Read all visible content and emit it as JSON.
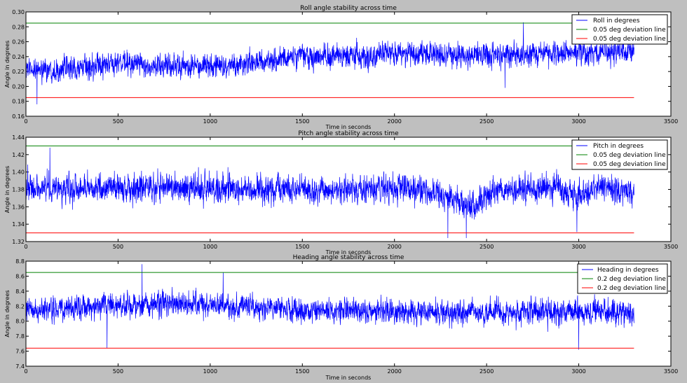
{
  "figure": {
    "background": "#bfbfbf",
    "axes_background": "#ffffff"
  },
  "chart_data": [
    {
      "type": "line",
      "title": "Roll angle stability across time",
      "xlabel": "Time in seconds",
      "ylabel": "Angle in degrees",
      "xlim": [
        0,
        3500
      ],
      "ylim": [
        0.16,
        0.3
      ],
      "xticks": [
        0,
        500,
        1000,
        1500,
        2000,
        2500,
        3000,
        3500
      ],
      "yticks": [
        "0.16",
        "0.18",
        "0.20",
        "0.22",
        "0.24",
        "0.26",
        "0.28",
        "0.30"
      ],
      "legend_position": "top-right",
      "x_end": 3300,
      "series": [
        {
          "name": "Roll in degrees",
          "color": "#0000ff",
          "kind": "noisy-signal",
          "samples": 3300,
          "mean_trend": [
            [
              0,
              0.222
            ],
            [
              300,
              0.224
            ],
            [
              550,
              0.232
            ],
            [
              700,
              0.226
            ],
            [
              900,
              0.228
            ],
            [
              1100,
              0.227
            ],
            [
              1200,
              0.23
            ],
            [
              1350,
              0.236
            ],
            [
              1500,
              0.24
            ],
            [
              1700,
              0.241
            ],
            [
              2000,
              0.244
            ],
            [
              2300,
              0.243
            ],
            [
              2600,
              0.241
            ],
            [
              2800,
              0.244
            ],
            [
              3000,
              0.246
            ],
            [
              3300,
              0.246
            ]
          ],
          "noise_amplitude": 0.011,
          "extremes": [
            [
              60,
              0.176
            ],
            [
              2700,
              0.286
            ],
            [
              2600,
              0.198
            ]
          ]
        },
        {
          "name": "0.05 deg deviation line",
          "color": "#008000",
          "kind": "hline",
          "y": 0.285,
          "x_range": [
            0,
            3300
          ]
        },
        {
          "name": "0.05 deg deviation line",
          "color": "#ff0000",
          "kind": "hline",
          "y": 0.185,
          "x_range": [
            0,
            3300
          ]
        }
      ]
    },
    {
      "type": "line",
      "title": "Pitch angle stability across time",
      "xlabel": "Time in seconds",
      "ylabel": "Angle in degrees",
      "xlim": [
        0,
        3500
      ],
      "ylim": [
        1.32,
        1.44
      ],
      "xticks": [
        0,
        500,
        1000,
        1500,
        2000,
        2500,
        3000,
        3500
      ],
      "yticks": [
        "1.32",
        "1.34",
        "1.36",
        "1.38",
        "1.40",
        "1.42",
        "1.44"
      ],
      "legend_position": "top-right",
      "x_end": 3300,
      "series": [
        {
          "name": "Pitch in degrees",
          "color": "#0000ff",
          "kind": "noisy-signal",
          "samples": 3300,
          "mean_trend": [
            [
              0,
              1.381
            ],
            [
              700,
              1.382
            ],
            [
              1400,
              1.38
            ],
            [
              2100,
              1.38
            ],
            [
              2300,
              1.372
            ],
            [
              2400,
              1.36
            ],
            [
              2550,
              1.378
            ],
            [
              2900,
              1.382
            ],
            [
              3000,
              1.372
            ],
            [
              3100,
              1.384
            ],
            [
              3300,
              1.376
            ]
          ],
          "noise_amplitude": 0.011,
          "extremes": [
            [
              130,
              1.428
            ],
            [
              2290,
              1.324
            ],
            [
              2390,
              1.324
            ],
            [
              2990,
              1.331
            ]
          ]
        },
        {
          "name": "0.05 deg deviation line",
          "color": "#008000",
          "kind": "hline",
          "y": 1.43,
          "x_range": [
            0,
            3300
          ]
        },
        {
          "name": "0.05 deg deviation line",
          "color": "#ff0000",
          "kind": "hline",
          "y": 1.33,
          "x_range": [
            0,
            3300
          ]
        }
      ]
    },
    {
      "type": "line",
      "title": "Heading angle stability across time",
      "xlabel": "Time in seconds",
      "ylabel": "Angle in degrees",
      "xlim": [
        0,
        3500
      ],
      "ylim": [
        7.4,
        8.8
      ],
      "xticks": [
        0,
        500,
        1000,
        1500,
        2000,
        2500,
        3000,
        3500
      ],
      "yticks": [
        "7.4",
        "7.6",
        "7.8",
        "8.0",
        "8.2",
        "8.4",
        "8.6",
        "8.8"
      ],
      "legend_position": "top-right",
      "x_end": 3300,
      "series": [
        {
          "name": "Heading in degrees",
          "color": "#0000ff",
          "kind": "noisy-signal",
          "samples": 3300,
          "mean_trend": [
            [
              0,
              8.14
            ],
            [
              500,
              8.2
            ],
            [
              800,
              8.24
            ],
            [
              1100,
              8.2
            ],
            [
              1500,
              8.15
            ],
            [
              2000,
              8.13
            ],
            [
              2500,
              8.12
            ],
            [
              3000,
              8.13
            ],
            [
              3300,
              8.12
            ]
          ],
          "noise_amplitude": 0.11,
          "extremes": [
            [
              630,
              8.76
            ],
            [
              1070,
              8.65
            ],
            [
              440,
              7.64
            ],
            [
              3000,
              7.62
            ]
          ]
        },
        {
          "name": "0.2 deg deviation line",
          "color": "#008000",
          "kind": "hline",
          "y": 8.65,
          "x_range": [
            0,
            3300
          ]
        },
        {
          "name": "0.2 deg deviation line",
          "color": "#ff0000",
          "kind": "hline",
          "y": 7.64,
          "x_range": [
            0,
            3300
          ]
        }
      ]
    }
  ]
}
